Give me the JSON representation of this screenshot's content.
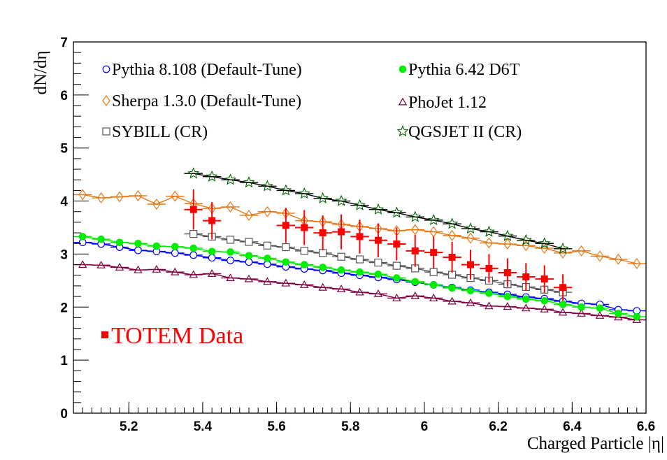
{
  "chart_data": {
    "type": "line",
    "title": "",
    "xlabel": "Charged Particle |η|",
    "ylabel": "dN/dη",
    "xlim": [
      5.05,
      6.6
    ],
    "ylim": [
      0,
      7
    ],
    "xticks": [
      5.2,
      5.4,
      5.6,
      5.8,
      6,
      6.2,
      6.4,
      6.6
    ],
    "xtick_labels": [
      "5.2",
      "5.4",
      "5.6",
      "5.8",
      "6",
      "6.2",
      "6.4",
      "6.6"
    ],
    "yticks": [
      0,
      1,
      2,
      3,
      4,
      5,
      6,
      7
    ],
    "ytick_labels": [
      "0",
      "1",
      "2",
      "3",
      "4",
      "5",
      "6",
      "7"
    ],
    "grid": false,
    "series": [
      {
        "name": "Pythia 8.108 (Default-Tune)",
        "marker": "open-circle",
        "color": "#0000ff",
        "marker_color": "#0000ff",
        "x": [
          5.075,
          5.125,
          5.175,
          5.225,
          5.275,
          5.325,
          5.375,
          5.425,
          5.475,
          5.525,
          5.575,
          5.625,
          5.675,
          5.725,
          5.775,
          5.825,
          5.875,
          5.925,
          5.975,
          6.025,
          6.075,
          6.125,
          6.175,
          6.225,
          6.275,
          6.325,
          6.375,
          6.425,
          6.475,
          6.525,
          6.575
        ],
        "y": [
          3.22,
          3.19,
          3.13,
          3.07,
          3.05,
          3.02,
          2.98,
          2.93,
          2.88,
          2.85,
          2.81,
          2.76,
          2.72,
          2.69,
          2.64,
          2.6,
          2.56,
          2.52,
          2.47,
          2.42,
          2.37,
          2.32,
          2.28,
          2.24,
          2.19,
          2.16,
          2.11,
          2.07,
          2.05,
          1.95,
          1.93
        ]
      },
      {
        "name": "Pythia 6.42 D6T",
        "marker": "filled-circle",
        "color": "#00ee00",
        "marker_color": "#00ee00",
        "x": [
          5.075,
          5.125,
          5.175,
          5.225,
          5.275,
          5.325,
          5.375,
          5.425,
          5.475,
          5.525,
          5.575,
          5.625,
          5.675,
          5.725,
          5.775,
          5.825,
          5.875,
          5.925,
          5.975,
          6.025,
          6.075,
          6.125,
          6.175,
          6.225,
          6.275,
          6.325,
          6.375,
          6.425,
          6.475,
          6.525,
          6.575
        ],
        "y": [
          3.33,
          3.28,
          3.22,
          3.2,
          3.15,
          3.14,
          3.11,
          3.05,
          3.04,
          2.97,
          2.92,
          2.85,
          2.8,
          2.75,
          2.7,
          2.66,
          2.62,
          2.55,
          2.48,
          2.42,
          2.36,
          2.31,
          2.26,
          2.2,
          2.15,
          2.12,
          2.05,
          2.0,
          1.98,
          1.88,
          1.82
        ]
      },
      {
        "name": "Sherpa 1.3.0 (Default-Tune)",
        "marker": "open-diamond",
        "color": "#e87817",
        "marker_color": "#e87817",
        "x": [
          5.075,
          5.125,
          5.175,
          5.225,
          5.275,
          5.325,
          5.375,
          5.425,
          5.475,
          5.525,
          5.575,
          5.625,
          5.675,
          5.725,
          5.775,
          5.825,
          5.875,
          5.925,
          5.975,
          6.025,
          6.075,
          6.125,
          6.175,
          6.225,
          6.275,
          6.325,
          6.375,
          6.425,
          6.475,
          6.525,
          6.575
        ],
        "y": [
          4.12,
          4.06,
          4.08,
          4.1,
          3.94,
          4.09,
          3.95,
          3.86,
          3.89,
          3.73,
          3.8,
          3.77,
          3.63,
          3.61,
          3.56,
          3.52,
          3.48,
          3.44,
          3.46,
          3.42,
          3.35,
          3.3,
          3.21,
          3.19,
          3.16,
          3.11,
          3.02,
          3.06,
          2.96,
          2.9,
          2.82
        ]
      },
      {
        "name": "PhoJet 1.12",
        "marker": "open-triangle",
        "color": "#800040",
        "marker_color": "#800040",
        "x": [
          5.075,
          5.125,
          5.175,
          5.225,
          5.275,
          5.325,
          5.375,
          5.425,
          5.475,
          5.525,
          5.575,
          5.625,
          5.675,
          5.725,
          5.775,
          5.825,
          5.875,
          5.925,
          5.975,
          6.025,
          6.075,
          6.125,
          6.175,
          6.225,
          6.275,
          6.325,
          6.375,
          6.425,
          6.475,
          6.525,
          6.575
        ],
        "y": [
          2.8,
          2.79,
          2.75,
          2.7,
          2.71,
          2.66,
          2.61,
          2.63,
          2.55,
          2.53,
          2.48,
          2.45,
          2.42,
          2.37,
          2.34,
          2.28,
          2.25,
          2.17,
          2.21,
          2.17,
          2.11,
          2.08,
          2.02,
          2.01,
          1.98,
          1.96,
          1.9,
          1.88,
          1.84,
          1.81,
          1.76
        ]
      },
      {
        "name": "SYBILL (CR)",
        "marker": "open-square",
        "color": "#555555",
        "marker_color": "#555555",
        "x": [
          5.375,
          5.425,
          5.475,
          5.525,
          5.575,
          5.625,
          5.675,
          5.725,
          5.775,
          5.825,
          5.875,
          5.925,
          5.975,
          6.025,
          6.075,
          6.125,
          6.175,
          6.225,
          6.275,
          6.325,
          6.375
        ],
        "y": [
          3.38,
          3.33,
          3.27,
          3.23,
          3.16,
          3.13,
          3.06,
          3.02,
          2.95,
          2.9,
          2.84,
          2.78,
          2.73,
          2.66,
          2.61,
          2.55,
          2.5,
          2.43,
          2.38,
          2.33,
          2.28
        ]
      },
      {
        "name": "QGSJET II (CR)",
        "marker": "open-star",
        "color": "#000000",
        "marker_color": "#006400",
        "x": [
          5.375,
          5.425,
          5.475,
          5.525,
          5.575,
          5.625,
          5.675,
          5.725,
          5.775,
          5.825,
          5.875,
          5.925,
          5.975,
          6.025,
          6.075,
          6.125,
          6.175,
          6.225,
          6.275,
          6.325,
          6.375
        ],
        "y": [
          4.52,
          4.46,
          4.4,
          4.35,
          4.28,
          4.2,
          4.14,
          4.05,
          4.0,
          3.92,
          3.84,
          3.78,
          3.7,
          3.64,
          3.57,
          3.48,
          3.42,
          3.34,
          3.26,
          3.2,
          3.1
        ]
      },
      {
        "name": "TOTEM Data",
        "marker": "filled-square",
        "color": "#ff0000",
        "marker_color": "#ff0000",
        "x": [
          5.375,
          5.425,
          5.625,
          5.675,
          5.725,
          5.775,
          5.825,
          5.875,
          5.925,
          5.975,
          6.025,
          6.075,
          6.125,
          6.175,
          6.225,
          6.275,
          6.325,
          6.375
        ],
        "y": [
          3.84,
          3.63,
          3.54,
          3.5,
          3.4,
          3.42,
          3.33,
          3.26,
          3.19,
          3.06,
          3.03,
          2.94,
          2.8,
          2.73,
          2.65,
          2.57,
          2.53,
          2.37
        ],
        "y_err": [
          0.38,
          0.35,
          0.33,
          0.33,
          0.33,
          0.33,
          0.32,
          0.32,
          0.31,
          0.3,
          0.3,
          0.29,
          0.28,
          0.27,
          0.27,
          0.26,
          0.26,
          0.25
        ],
        "x_err": 0.025
      }
    ],
    "legend": [
      {
        "label": "Pythia 8.108 (Default-Tune)",
        "series": 0
      },
      {
        "label": "Pythia 6.42 D6T",
        "series": 1
      },
      {
        "label": "Sherpa 1.3.0 (Default-Tune)",
        "series": 2
      },
      {
        "label": "PhoJet 1.12",
        "series": 3
      },
      {
        "label": "SYBILL (CR)",
        "series": 4
      },
      {
        "label": "QGSJET II (CR)",
        "series": 5
      }
    ],
    "legend_position": "top",
    "annotations": [
      {
        "text": "TOTEM Data",
        "marker": "filled-square",
        "color": "#ff0000"
      }
    ]
  }
}
